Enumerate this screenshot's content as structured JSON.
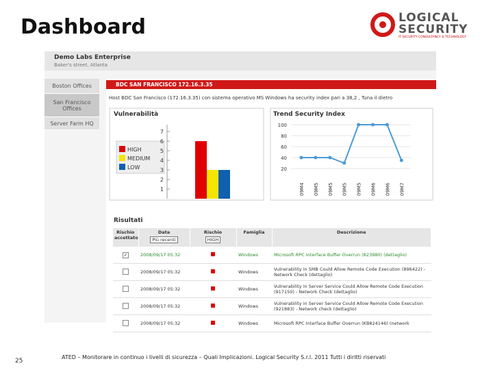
{
  "slide": {
    "title": "Dashboard",
    "page_number": "25",
    "footer": "ATED – Monitorare in continuo i livelli di sicurezza – Quali Implicazioni.  Logical Security S.r.l. 2011 Tutti i diritti riservati",
    "logo": {
      "top": "LOGICAL",
      "bottom": "SECURITY",
      "tagline": "IT SECURITY CONSULTANCY & TECHNOLOGY"
    }
  },
  "header": {
    "company": "Demo Labs Enterprise",
    "address": "Baker's street, Atlanta"
  },
  "sidebar": {
    "items": [
      "Boston Offices",
      "San Francisco Offices",
      "Server Farm HQ"
    ],
    "selected": 1
  },
  "host_bar": "BDC SAN FRANCISCO 172.16.3.35",
  "host_info": "Host BDC San Francisco (172.16.3.35) con sistema operativo MS Windows ha security index pari a 38,2 , Tuna il dietro",
  "vuln_chart": {
    "type": "bar",
    "title": "Vulnerabilità",
    "categories": [
      "HIGH",
      "MEDIUM",
      "LOW"
    ],
    "values": [
      6,
      3,
      3
    ],
    "colors": [
      "#e00000",
      "#f2e600",
      "#1060b0"
    ],
    "ylim": [
      0,
      7
    ],
    "yticks": [
      1,
      2,
      3,
      4,
      5,
      6,
      7
    ]
  },
  "trend_chart": {
    "type": "line",
    "title": "Trend Security Index",
    "categories": [
      "09M4",
      "09M5",
      "09M5",
      "09M5",
      "09M5",
      "09M6",
      "09M6",
      "09M7"
    ],
    "values": [
      40,
      40,
      40,
      30,
      100,
      100,
      100,
      35
    ],
    "color": "#4a9ad8",
    "ylim": [
      0,
      100
    ],
    "yticks": [
      20,
      40,
      60,
      80,
      100
    ],
    "grid": true
  },
  "results": {
    "title": "Risultati",
    "columns": [
      "Rischio accettato",
      "Data",
      "Rischio",
      "Famiglia",
      "Descrizione"
    ],
    "filters": {
      "date": "Più recenti",
      "risk": "HIGH"
    },
    "rows": [
      {
        "accepted": true,
        "date": "2008/09/17 05:32",
        "family": "Windows",
        "description": "Microsoft RPC Interface Buffer Overrun (823980) (dettaglio)"
      },
      {
        "accepted": false,
        "date": "2008/09/17 05:32",
        "family": "Windows",
        "description": "Vulnerability in SMB Could Allow Remote Code Execution (896422) - Network Check (dettaglio)"
      },
      {
        "accepted": false,
        "date": "2008/09/17 05:32",
        "family": "Windows",
        "description": "Vulnerability in Server Service Could Allow Remote Code Execution (917150) - Network Check (dettaglio)"
      },
      {
        "accepted": false,
        "date": "2008/09/17 05:32",
        "family": "Windows",
        "description": "Vulnerability in Server Service Could Allow Remote Code Execution (921883) - Network check (dettaglio)"
      },
      {
        "accepted": false,
        "date": "2008/09/17 05:32",
        "family": "Windows",
        "description": "Microsoft RPC Interface Buffer Overrun (KB824146) (network"
      }
    ]
  }
}
